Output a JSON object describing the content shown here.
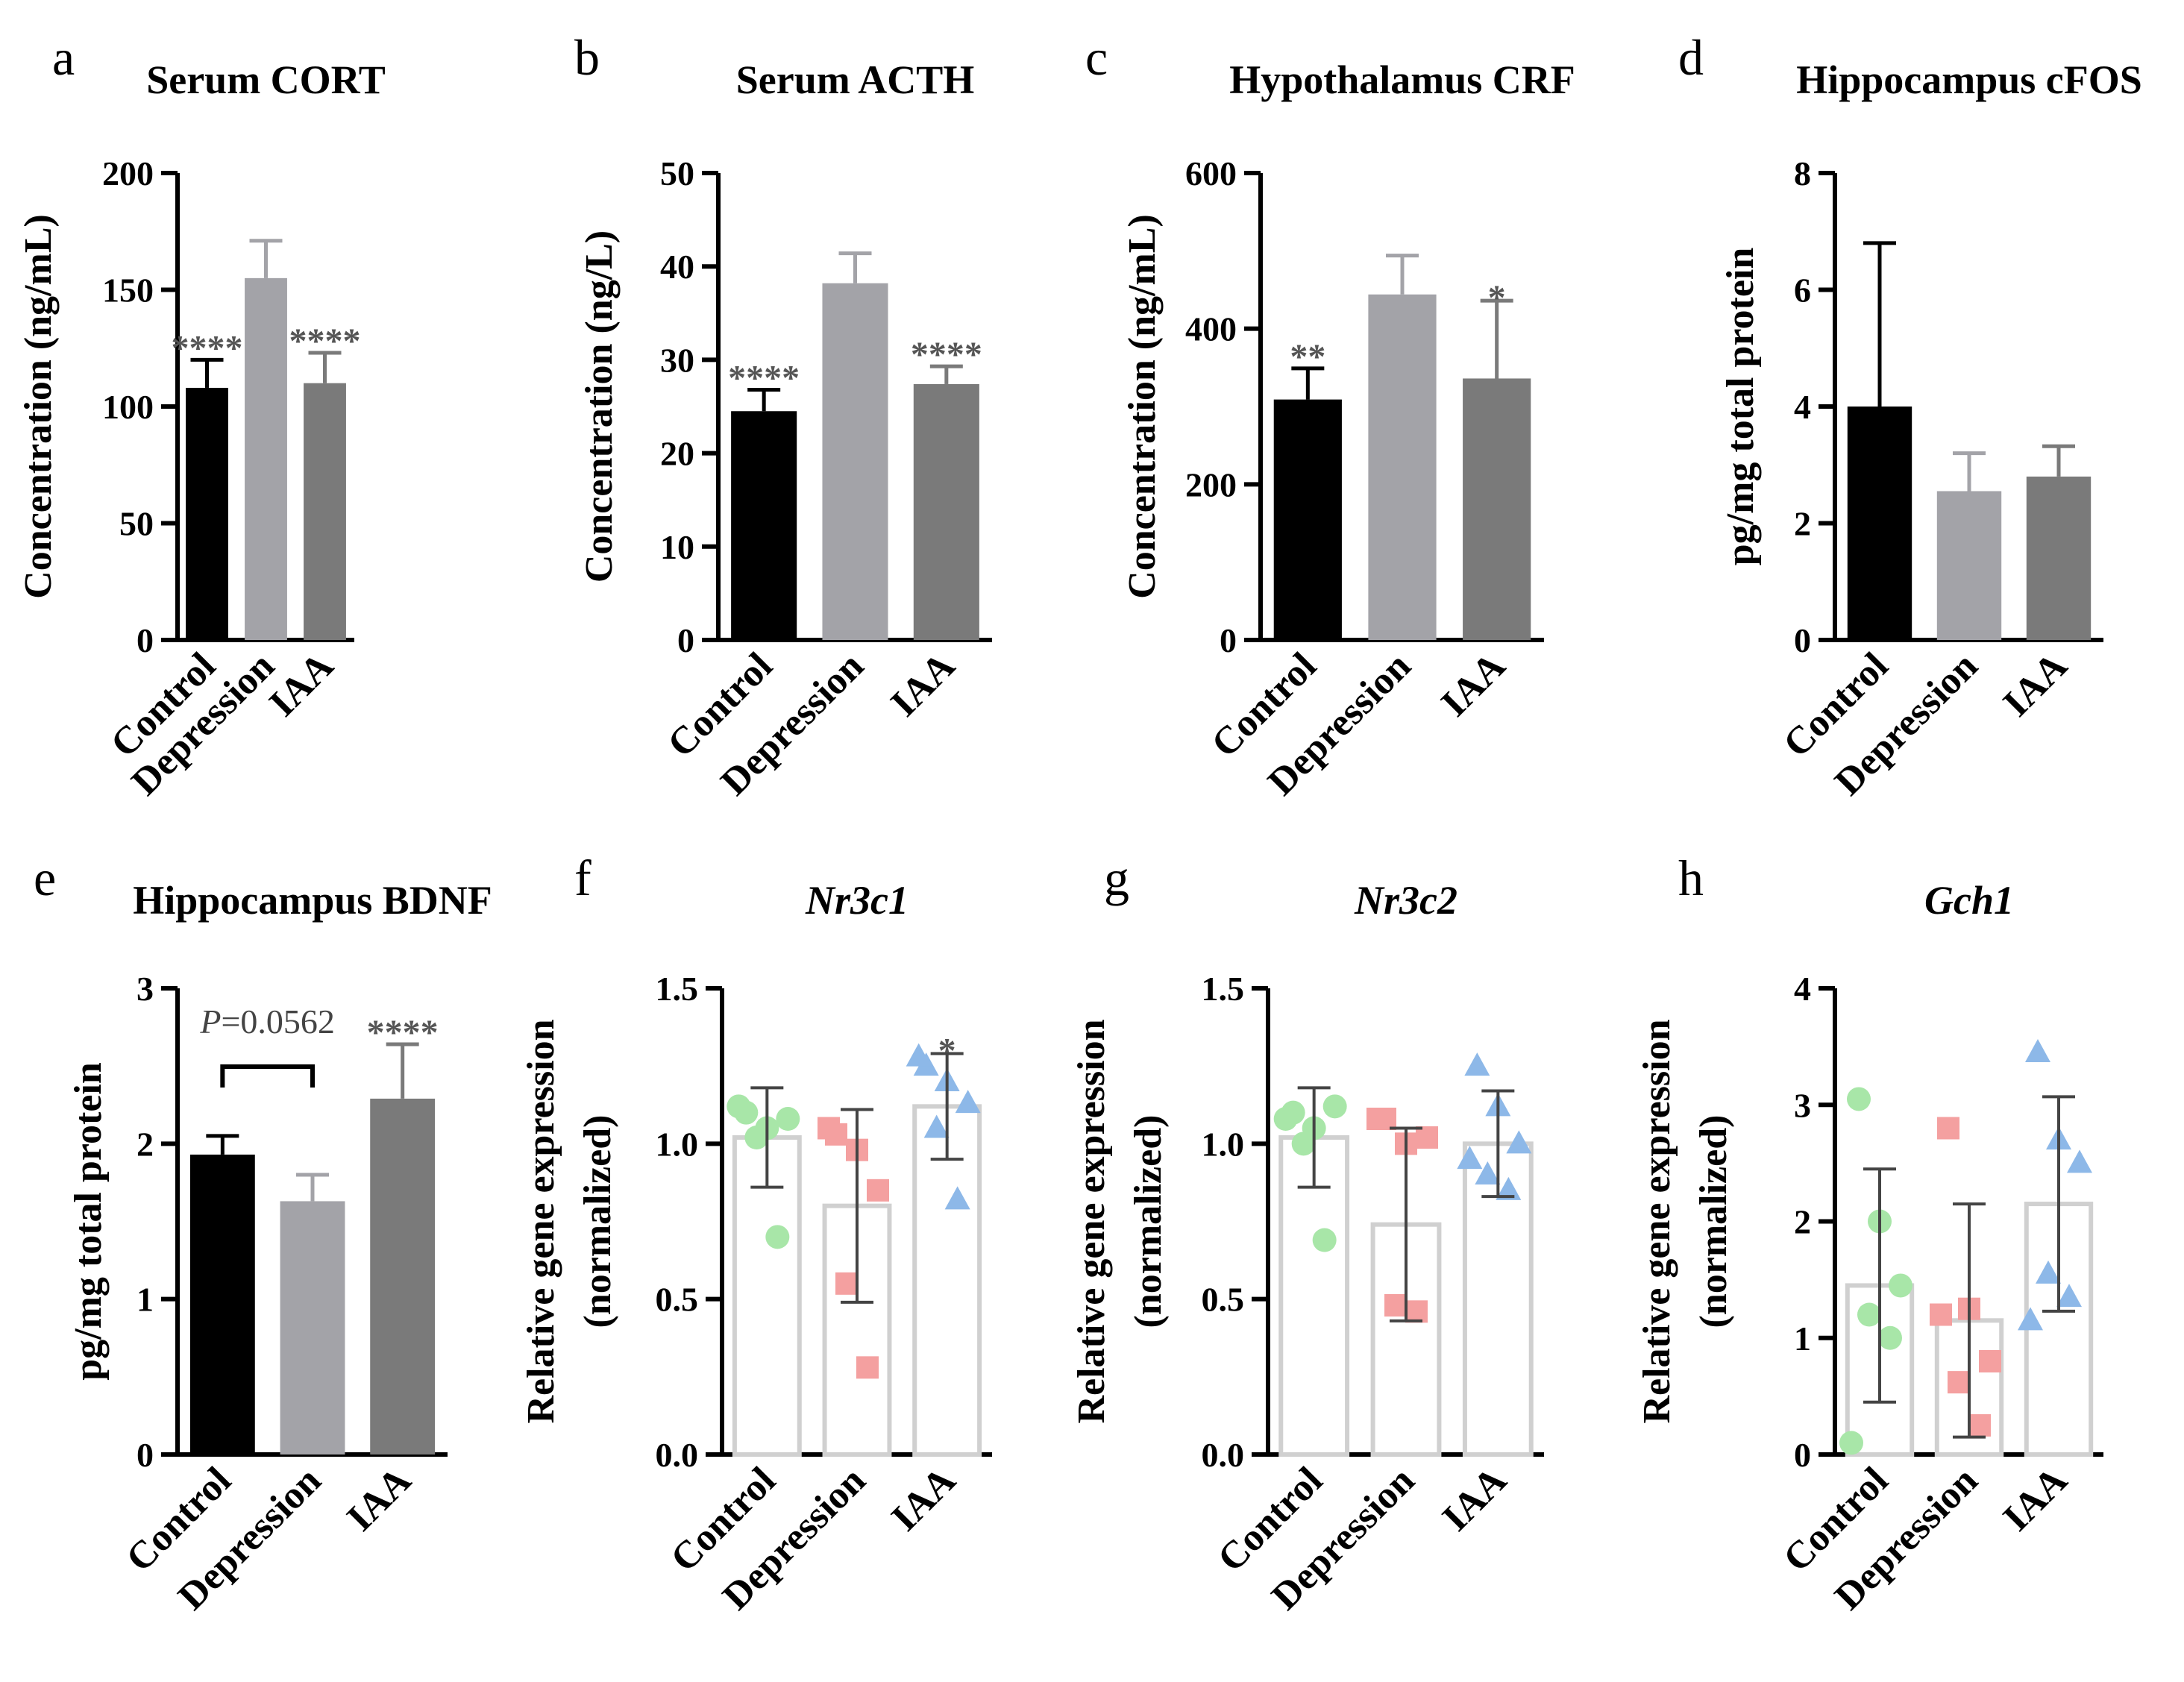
{
  "categories": [
    "Control",
    "Depression",
    "IAA"
  ],
  "chart_data": [
    {
      "id": "a",
      "panel_label": "a",
      "type": "bar",
      "title": "Serum CORT",
      "title_italic": false,
      "ylabel_lines": [
        "Concentration (ng/mL)"
      ],
      "ylim": [
        0,
        200
      ],
      "yticks": [
        "0",
        "50",
        "100",
        "150",
        "200"
      ],
      "yticks_values": [
        0,
        50,
        100,
        150,
        200
      ],
      "values": [
        108,
        155,
        110
      ],
      "errors": [
        12,
        16,
        13
      ],
      "colors": [
        "#000000",
        "#a3a3a8",
        "#7a7a7a"
      ],
      "annotations": [
        "****",
        "",
        "****"
      ]
    },
    {
      "id": "b",
      "panel_label": "b",
      "type": "bar",
      "title": "Serum ACTH",
      "title_italic": false,
      "ylabel_lines": [
        "Concentration (ng/L)"
      ],
      "ylim": [
        0,
        50
      ],
      "yticks": [
        "0",
        "10",
        "20",
        "30",
        "40",
        "50"
      ],
      "yticks_values": [
        0,
        10,
        20,
        30,
        40,
        50
      ],
      "values": [
        24.5,
        38.2,
        27.4
      ],
      "errors": [
        2.3,
        3.2,
        1.9
      ],
      "colors": [
        "#000000",
        "#a3a3a8",
        "#7a7a7a"
      ],
      "annotations": [
        "****",
        "",
        "****"
      ]
    },
    {
      "id": "c",
      "panel_label": "c",
      "type": "bar",
      "title": "Hypothalamus CRF",
      "title_italic": false,
      "ylabel_lines": [
        "Concentration (ng/mL)"
      ],
      "ylim": [
        0,
        600
      ],
      "yticks": [
        "0",
        "200",
        "400",
        "600"
      ],
      "yticks_values": [
        0,
        200,
        400,
        600
      ],
      "values": [
        309,
        444,
        336
      ],
      "errors": [
        40,
        50,
        100
      ],
      "colors": [
        "#000000",
        "#a3a3a8",
        "#7a7a7a"
      ],
      "annotations": [
        "**",
        "",
        "*"
      ]
    },
    {
      "id": "d",
      "panel_label": "d",
      "type": "bar",
      "title": "Hippocampus cFOS",
      "title_italic": false,
      "ylabel_lines": [
        "pg/mg total protein"
      ],
      "ylim": [
        0,
        8
      ],
      "yticks": [
        "0",
        "2",
        "4",
        "6",
        "8"
      ],
      "yticks_values": [
        0,
        2,
        4,
        6,
        8
      ],
      "values": [
        4.0,
        2.55,
        2.8
      ],
      "errors": [
        2.8,
        0.65,
        0.52
      ],
      "colors": [
        "#000000",
        "#a3a3a8",
        "#7a7a7a"
      ],
      "annotations": [
        "",
        "",
        ""
      ]
    },
    {
      "id": "e",
      "panel_label": "e",
      "type": "bar",
      "title": "Hippocampus BDNF",
      "title_italic": false,
      "ylabel_lines": [
        "pg/mg total protein"
      ],
      "ylim": [
        0,
        3
      ],
      "yticks": [
        "0",
        "1",
        "2",
        "3"
      ],
      "yticks_values": [
        0,
        1,
        2,
        3
      ],
      "values": [
        1.93,
        1.63,
        2.29
      ],
      "errors": [
        0.12,
        0.17,
        0.35
      ],
      "colors": [
        "#000000",
        "#a3a3a8",
        "#7a7a7a"
      ],
      "annotations": [
        "",
        "",
        "****"
      ],
      "comparison": {
        "p_prefix": "P",
        "p_value": "=0.0562",
        "from": 0,
        "to": 1
      }
    },
    {
      "id": "f",
      "panel_label": "f",
      "type": "bar_scatter",
      "title": "Nr3c1",
      "title_italic": true,
      "ylabel_lines": [
        "Relative gene expression",
        "(normalized)"
      ],
      "ylim": [
        0,
        1.5
      ],
      "yticks": [
        "0.0",
        "0.5",
        "1.0",
        "1.5"
      ],
      "yticks_values": [
        0,
        0.5,
        1.0,
        1.5
      ],
      "values": [
        1.02,
        0.8,
        1.12
      ],
      "errors": [
        0.16,
        0.31,
        0.17
      ],
      "points": [
        [
          1.1,
          1.05,
          1.08,
          1.02,
          0.7,
          1.12
        ],
        [
          1.03,
          0.98,
          0.85,
          0.55,
          0.28,
          1.05
        ],
        [
          1.25,
          1.2,
          1.13,
          1.05,
          0.82,
          1.28
        ]
      ],
      "point_colors": [
        "#a8e6a8",
        "#f4a0a0",
        "#8db8e8"
      ],
      "annotations": [
        "",
        "",
        "*"
      ]
    },
    {
      "id": "g",
      "panel_label": "g",
      "type": "bar_scatter",
      "title": "Nr3c2",
      "title_italic": true,
      "ylabel_lines": [
        "Relative gene expression",
        "(normalized)"
      ],
      "ylim": [
        0,
        1.5
      ],
      "yticks": [
        "0.0",
        "0.5",
        "1.0",
        "1.5"
      ],
      "yticks_values": [
        0,
        0.5,
        1.0,
        1.5
      ],
      "values": [
        1.02,
        0.74,
        1.0
      ],
      "errors": [
        0.16,
        0.31,
        0.17
      ],
      "points": [
        [
          1.1,
          1.05,
          1.12,
          1.0,
          0.69,
          1.08
        ],
        [
          1.08,
          1.0,
          1.02,
          0.48,
          0.46,
          1.08
        ],
        [
          1.25,
          1.12,
          1.0,
          0.9,
          0.85,
          0.95
        ]
      ],
      "point_colors": [
        "#a8e6a8",
        "#f4a0a0",
        "#8db8e8"
      ],
      "annotations": [
        "",
        "",
        ""
      ]
    },
    {
      "id": "h",
      "panel_label": "h",
      "type": "bar_scatter",
      "title": "Gch1",
      "title_italic": true,
      "ylabel_lines": [
        "Relative gene expression",
        "(normalized)"
      ],
      "ylim": [
        0,
        4
      ],
      "yticks": [
        "0",
        "1",
        "2",
        "3",
        "4"
      ],
      "yticks_values": [
        0,
        1,
        2,
        3,
        4
      ],
      "values": [
        1.45,
        1.15,
        2.15
      ],
      "errors": [
        1.0,
        1.0,
        0.92
      ],
      "points": [
        [
          3.05,
          2.0,
          1.45,
          1.2,
          1.0,
          0.1
        ],
        [
          2.8,
          1.25,
          0.8,
          0.62,
          0.25,
          1.2
        ],
        [
          3.45,
          2.7,
          2.5,
          1.55,
          1.35,
          1.15
        ]
      ],
      "point_colors": [
        "#a8e6a8",
        "#f4a0a0",
        "#8db8e8"
      ],
      "annotations": [
        "",
        "",
        ""
      ]
    }
  ]
}
